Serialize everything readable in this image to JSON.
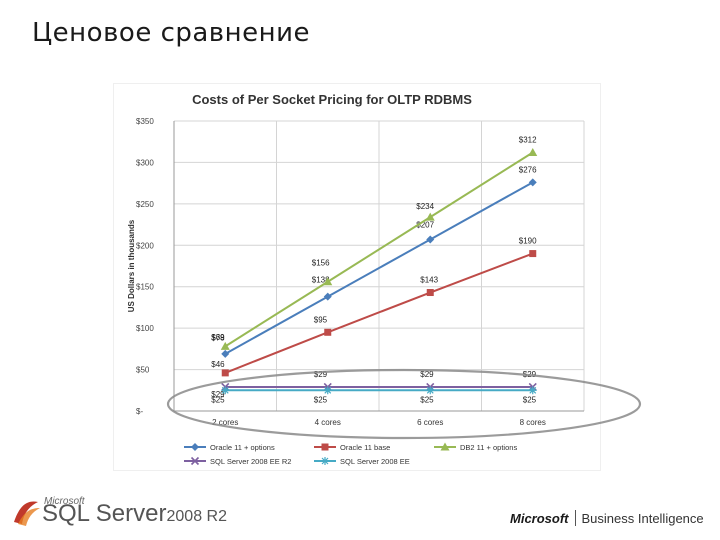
{
  "slide": {
    "title": "Ценовое сравнение"
  },
  "footer": {
    "left_small": "Microsoft",
    "sql_brand": "SQL Server",
    "sql_version": "2008 R2",
    "right_ms": "Microsoft",
    "right_bi": "Business Intelligence"
  },
  "chart_data": {
    "type": "line",
    "title": "Costs of Per Socket Pricing for OLTP RDBMS",
    "ylabel": "US Dollars in thousands",
    "xlabel": "",
    "ylim": [
      0,
      350
    ],
    "yticks": [
      0,
      50,
      100,
      150,
      200,
      250,
      300,
      350
    ],
    "ytick_labels": [
      "$-",
      "$50",
      "$100",
      "$150",
      "$200",
      "$250",
      "$300",
      "$350"
    ],
    "categories": [
      "2 cores",
      "4 cores",
      "6 cores",
      "8 cores"
    ],
    "grid": true,
    "legend_position": "bottom",
    "series": [
      {
        "name": "Oracle 11 + options",
        "color": "#4a7ebb",
        "marker": "diamond",
        "values": [
          69,
          138,
          207,
          276
        ],
        "labels": [
          "$69",
          "$138",
          "$207",
          "$276"
        ]
      },
      {
        "name": "Oracle 11 base",
        "color": "#be4b48",
        "marker": "square",
        "values": [
          46,
          95,
          143,
          190
        ],
        "labels": [
          "$46",
          "$95",
          "$143",
          "$190"
        ]
      },
      {
        "name": "DB2 11 + options",
        "color": "#98b954",
        "marker": "triangle",
        "values": [
          78,
          156,
          234,
          312
        ],
        "labels": [
          "$78",
          "$156",
          "$234",
          "$312"
        ]
      },
      {
        "name": "SQL Server 2008 EE R2",
        "color": "#7d60a0",
        "marker": "x",
        "values": [
          29,
          29,
          29,
          29
        ],
        "labels": [
          "$29",
          "$29",
          "$29",
          "$29"
        ]
      },
      {
        "name": "SQL Server 2008 EE",
        "color": "#46aac5",
        "marker": "star",
        "values": [
          25,
          25,
          25,
          25
        ],
        "labels": [
          "$25",
          "$25",
          "$25",
          "$25"
        ]
      }
    ],
    "annotation": "ellipse-highlight-sql-server"
  }
}
